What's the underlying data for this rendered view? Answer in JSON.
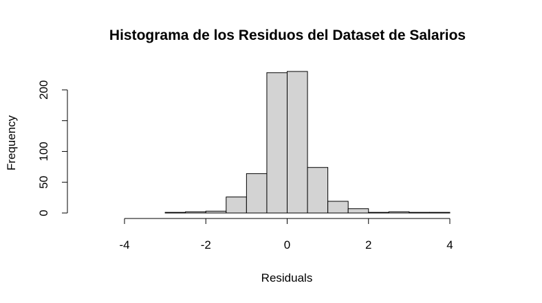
{
  "chart_data": {
    "type": "bar",
    "title": "Histograma de los Residuos del Dataset de Salarios",
    "xlabel": "Residuals",
    "ylabel": "Frequency",
    "bin_edges": [
      -3.0,
      -2.5,
      -2.0,
      -1.5,
      -1.0,
      -0.5,
      0.0,
      0.5,
      1.0,
      1.5,
      2.0,
      2.5,
      3.0,
      3.5,
      4.0
    ],
    "values": [
      1,
      2,
      3,
      26,
      64,
      228,
      230,
      74,
      19,
      7,
      1,
      2,
      1,
      1
    ],
    "xlim": [
      -4,
      4
    ],
    "ylim": [
      0,
      230
    ],
    "x_ticks": [
      -4,
      -2,
      0,
      2,
      4
    ],
    "x_tick_labels": [
      "-4",
      "-2",
      "0",
      "2",
      "4"
    ],
    "y_ticks": [
      0,
      50,
      100,
      150,
      200
    ],
    "y_tick_labels": [
      "0",
      "50",
      "100",
      "",
      "200"
    ],
    "bar_fill": "#d3d3d3",
    "grid": false
  }
}
